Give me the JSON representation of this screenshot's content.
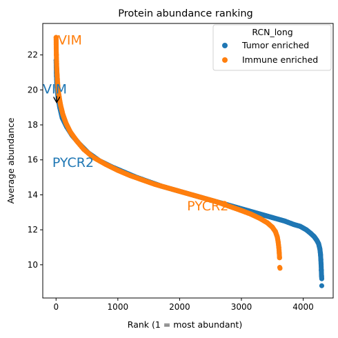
{
  "chart_data": {
    "type": "scatter",
    "title": "Protein abundance ranking",
    "xlabel": "Rank (1 = most abundant)",
    "ylabel": "Average abundance",
    "xlim": [
      -215,
      4485
    ],
    "ylim": [
      8.1,
      23.8
    ],
    "xticks": [
      0,
      1000,
      2000,
      3000,
      4000
    ],
    "yticks": [
      10,
      12,
      14,
      16,
      18,
      20,
      22
    ],
    "grid": false,
    "legend": {
      "title": "RCN_long",
      "placement": "top-right"
    },
    "series": [
      {
        "name": "Tumor enriched",
        "color": "#1f77b4",
        "curve": [
          [
            1,
            21.7
          ],
          [
            3,
            21.3
          ],
          [
            6,
            20.8
          ],
          [
            12,
            20.4
          ],
          [
            20,
            20.0
          ],
          [
            35,
            19.5
          ],
          [
            60,
            19.0
          ],
          [
            100,
            18.4
          ],
          [
            170,
            17.9
          ],
          [
            260,
            17.4
          ],
          [
            380,
            16.9
          ],
          [
            520,
            16.4
          ],
          [
            700,
            15.95
          ],
          [
            900,
            15.6
          ],
          [
            1100,
            15.3
          ],
          [
            1300,
            15.0
          ],
          [
            1500,
            14.75
          ],
          [
            1700,
            14.5
          ],
          [
            1900,
            14.3
          ],
          [
            2100,
            14.1
          ],
          [
            2300,
            13.9
          ],
          [
            2500,
            13.7
          ],
          [
            2700,
            13.5
          ],
          [
            2900,
            13.3
          ],
          [
            3100,
            13.1
          ],
          [
            3300,
            12.9
          ],
          [
            3500,
            12.7
          ],
          [
            3700,
            12.5
          ],
          [
            3850,
            12.3
          ],
          [
            3950,
            12.2
          ],
          [
            4050,
            12.0
          ],
          [
            4120,
            11.8
          ],
          [
            4180,
            11.6
          ],
          [
            4220,
            11.4
          ],
          [
            4250,
            11.2
          ],
          [
            4270,
            10.9
          ],
          [
            4280,
            10.6
          ],
          [
            4285,
            10.3
          ],
          [
            4290,
            10.0
          ],
          [
            4293,
            9.7
          ],
          [
            4296,
            9.4
          ],
          [
            4300,
            9.2
          ]
        ],
        "outliers": [
          [
            4300,
            8.8
          ]
        ]
      },
      {
        "name": "Immune enriched",
        "color": "#ff7f0e",
        "curve": [
          [
            1,
            23.0
          ],
          [
            2,
            22.6
          ],
          [
            3,
            22.3
          ],
          [
            5,
            22.0
          ],
          [
            8,
            21.6
          ],
          [
            12,
            21.2
          ],
          [
            18,
            20.8
          ],
          [
            25,
            20.4
          ],
          [
            35,
            20.0
          ],
          [
            50,
            19.6
          ],
          [
            75,
            19.1
          ],
          [
            110,
            18.6
          ],
          [
            160,
            18.1
          ],
          [
            230,
            17.6
          ],
          [
            330,
            17.1
          ],
          [
            450,
            16.6
          ],
          [
            600,
            16.15
          ],
          [
            800,
            15.75
          ],
          [
            1000,
            15.4
          ],
          [
            1200,
            15.1
          ],
          [
            1400,
            14.85
          ],
          [
            1600,
            14.6
          ],
          [
            1800,
            14.4
          ],
          [
            2000,
            14.2
          ],
          [
            2200,
            14.0
          ],
          [
            2400,
            13.8
          ],
          [
            2600,
            13.6
          ],
          [
            2800,
            13.35
          ],
          [
            3000,
            13.1
          ],
          [
            3150,
            12.9
          ],
          [
            3300,
            12.65
          ],
          [
            3420,
            12.4
          ],
          [
            3500,
            12.15
          ],
          [
            3550,
            11.9
          ],
          [
            3580,
            11.6
          ],
          [
            3595,
            11.3
          ],
          [
            3605,
            11.0
          ],
          [
            3612,
            10.7
          ],
          [
            3617,
            10.4
          ]
        ],
        "outliers": [
          [
            3620,
            9.85
          ],
          [
            3625,
            9.8
          ]
        ]
      }
    ],
    "annotations": [
      {
        "text": "VIM",
        "series": "Immune enriched",
        "x": 30,
        "y": 22.6
      },
      {
        "text": "VIM",
        "series": "Tumor enriched",
        "x": -215,
        "y": 19.8,
        "arrow_to": [
          10,
          19.9
        ]
      },
      {
        "text": "PYCR2",
        "series": "Tumor enriched",
        "x": -60,
        "y": 15.6
      },
      {
        "text": "PYCR2",
        "series": "Immune enriched",
        "x": 2120,
        "y": 13.1
      }
    ]
  }
}
